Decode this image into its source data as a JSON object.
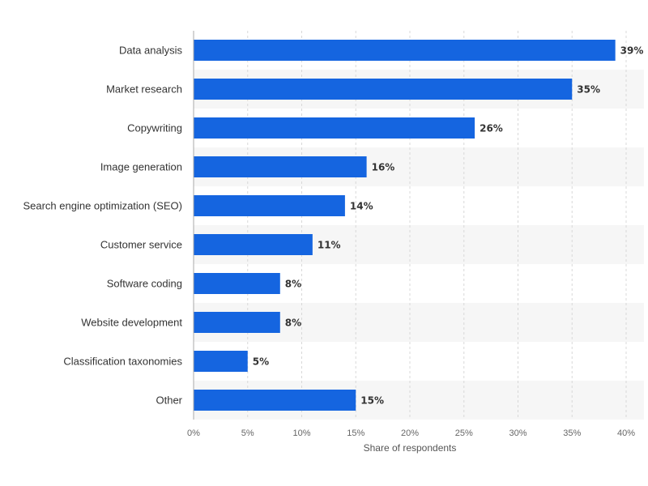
{
  "chart_data": {
    "type": "bar",
    "orientation": "horizontal",
    "categories": [
      "Data analysis",
      "Market research",
      "Copywriting",
      "Image generation",
      "Search engine optimization (SEO)",
      "Customer service",
      "Software coding",
      "Website development",
      "Classification taxonomies",
      "Other"
    ],
    "values": [
      39,
      35,
      26,
      16,
      14,
      11,
      8,
      8,
      5,
      15
    ],
    "value_labels": [
      "39%",
      "35%",
      "26%",
      "16%",
      "14%",
      "11%",
      "8%",
      "8%",
      "5%",
      "15%"
    ],
    "xlabel": "Share of respondents",
    "ylabel": "",
    "xlim": [
      0,
      40
    ],
    "ticks": [
      "0%",
      "5%",
      "10%",
      "15%",
      "20%",
      "25%",
      "30%",
      "35%",
      "40%"
    ],
    "tick_values": [
      0,
      5,
      10,
      15,
      20,
      25,
      30,
      35,
      40
    ],
    "grid": true,
    "bar_color": "#1565e0",
    "band_color": "#f6f6f6"
  }
}
